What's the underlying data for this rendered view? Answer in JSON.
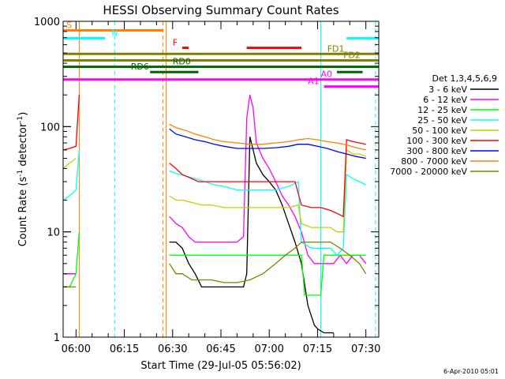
{
  "chart_data": {
    "type": "line",
    "title": "HESSI Observing Summary Count Rates",
    "xlabel": "Start Time (29-Jul-05 05:56:02)",
    "ylabel_main": "Count Rate (s",
    "ylabel_sup1": "-1",
    "ylabel_mid": " detector",
    "ylabel_sup2": "-1",
    "ylabel_end": ")",
    "x_start": "05:56:02",
    "x_tick_labels": [
      "06:00",
      "06:15",
      "06:30",
      "06:45",
      "07:00",
      "07:15",
      "07:30"
    ],
    "x_tick_values_min": [
      0,
      15,
      30,
      45,
      60,
      75,
      90
    ],
    "y_tick_labels": [
      "1",
      "10",
      "100",
      "1000"
    ],
    "y_scale": "log",
    "ylim": [
      1,
      1000
    ],
    "xlim_minutes_after_0600": [
      -4,
      94
    ],
    "legend_title": "Det 1,3,4,5,6,9",
    "legend_position": "right",
    "series": [
      {
        "name": "3 - 6 keV",
        "color": "#000000",
        "points": [
          [
            -4,
            4
          ],
          [
            -2,
            4
          ],
          [
            -1,
            4
          ],
          [
            0,
            4
          ],
          [
            28,
            null
          ],
          [
            29,
            8
          ],
          [
            31,
            8
          ],
          [
            33,
            7
          ],
          [
            35,
            5
          ],
          [
            37,
            4
          ],
          [
            39,
            3
          ],
          [
            41,
            3
          ],
          [
            43,
            3
          ],
          [
            45,
            3
          ],
          [
            46,
            3
          ],
          [
            48,
            3
          ],
          [
            50,
            3
          ],
          [
            52,
            3
          ],
          [
            53,
            4
          ],
          [
            54,
            80
          ],
          [
            55,
            60
          ],
          [
            56,
            45
          ],
          [
            58,
            35
          ],
          [
            60,
            30
          ],
          [
            62,
            25
          ],
          [
            64,
            18
          ],
          [
            66,
            12
          ],
          [
            68,
            8
          ],
          [
            70,
            5
          ],
          [
            72,
            2
          ],
          [
            74,
            1.3
          ],
          [
            75,
            1.2
          ],
          [
            77,
            1.1
          ],
          [
            80,
            1.1
          ]
        ]
      },
      {
        "name": "6 - 12 keV",
        "color": "#ff00ff",
        "points": [
          [
            -4,
            4
          ],
          [
            -2,
            4
          ],
          [
            0,
            4
          ],
          [
            28,
            null
          ],
          [
            29,
            14
          ],
          [
            31,
            12
          ],
          [
            33,
            11
          ],
          [
            35,
            9
          ],
          [
            37,
            8
          ],
          [
            40,
            8
          ],
          [
            43,
            8
          ],
          [
            46,
            8
          ],
          [
            50,
            8
          ],
          [
            52,
            9
          ],
          [
            53,
            120
          ],
          [
            54,
            200
          ],
          [
            55,
            150
          ],
          [
            56,
            70
          ],
          [
            58,
            50
          ],
          [
            60,
            40
          ],
          [
            62,
            30
          ],
          [
            64,
            22
          ],
          [
            66,
            18
          ],
          [
            68,
            14
          ],
          [
            70,
            10
          ],
          [
            72,
            6
          ],
          [
            74,
            5
          ],
          [
            76,
            5
          ],
          [
            78,
            5
          ],
          [
            80,
            5
          ],
          [
            82,
            6
          ],
          [
            84,
            5
          ],
          [
            86,
            6
          ],
          [
            88,
            6
          ],
          [
            90,
            5
          ]
        ]
      },
      {
        "name": "12 - 25 keV",
        "color": "#00ff00",
        "points": [
          [
            -4,
            3
          ],
          [
            -2,
            3
          ],
          [
            0,
            4
          ],
          [
            1,
            10
          ],
          [
            28,
            null
          ],
          [
            29,
            6
          ],
          [
            31,
            6
          ],
          [
            33,
            6
          ],
          [
            35,
            6
          ],
          [
            37,
            6
          ],
          [
            40,
            6
          ],
          [
            43,
            6
          ],
          [
            46,
            6
          ],
          [
            50,
            6
          ],
          [
            53,
            6
          ],
          [
            56,
            6
          ],
          [
            59,
            6
          ],
          [
            62,
            6
          ],
          [
            65,
            6
          ],
          [
            68,
            6
          ],
          [
            70,
            6
          ],
          [
            71,
            2.5
          ],
          [
            74,
            2.5
          ],
          [
            76,
            2.5
          ],
          [
            77,
            6
          ],
          [
            80,
            6
          ],
          [
            83,
            6
          ],
          [
            86,
            6
          ],
          [
            88,
            6
          ],
          [
            90,
            6
          ]
        ]
      },
      {
        "name": "25 - 50 keV",
        "color": "#00ffff",
        "points": [
          [
            -4,
            20
          ],
          [
            -2,
            22
          ],
          [
            0,
            25
          ],
          [
            1,
            60
          ],
          [
            28,
            null
          ],
          [
            29,
            38
          ],
          [
            31,
            36
          ],
          [
            34,
            34
          ],
          [
            37,
            32
          ],
          [
            40,
            30
          ],
          [
            43,
            28
          ],
          [
            46,
            27
          ],
          [
            50,
            25
          ],
          [
            54,
            25
          ],
          [
            58,
            25
          ],
          [
            62,
            25
          ],
          [
            66,
            27
          ],
          [
            69,
            30
          ],
          [
            70,
            8
          ],
          [
            73,
            7
          ],
          [
            76,
            7
          ],
          [
            79,
            7
          ],
          [
            81,
            6
          ],
          [
            83,
            7
          ],
          [
            84,
            35
          ],
          [
            86,
            32
          ],
          [
            88,
            30
          ],
          [
            90,
            28
          ]
        ]
      },
      {
        "name": "50 - 100 keV",
        "color": "#cccc00",
        "points": [
          [
            -4,
            40
          ],
          [
            -2,
            45
          ],
          [
            0,
            50
          ],
          [
            28,
            null
          ],
          [
            29,
            22
          ],
          [
            31,
            20
          ],
          [
            33,
            20
          ],
          [
            36,
            19
          ],
          [
            39,
            18
          ],
          [
            42,
            18
          ],
          [
            46,
            17
          ],
          [
            50,
            17
          ],
          [
            54,
            17
          ],
          [
            58,
            17
          ],
          [
            62,
            17
          ],
          [
            66,
            17
          ],
          [
            69,
            18
          ],
          [
            70,
            12
          ],
          [
            73,
            11
          ],
          [
            76,
            11
          ],
          [
            79,
            11
          ],
          [
            81,
            10
          ],
          [
            83,
            10
          ],
          [
            84,
            60
          ],
          [
            86,
            55
          ],
          [
            88,
            55
          ],
          [
            90,
            52
          ]
        ]
      },
      {
        "name": "100 - 300 keV",
        "color": "#ff0000",
        "points": [
          [
            -4,
            60
          ],
          [
            -2,
            62
          ],
          [
            0,
            65
          ],
          [
            1,
            200
          ],
          [
            28,
            null
          ],
          [
            29,
            45
          ],
          [
            31,
            40
          ],
          [
            33,
            35
          ],
          [
            35,
            33
          ],
          [
            38,
            30
          ],
          [
            41,
            30
          ],
          [
            44,
            30
          ],
          [
            47,
            30
          ],
          [
            50,
            30
          ],
          [
            53,
            30
          ],
          [
            56,
            30
          ],
          [
            59,
            30
          ],
          [
            62,
            30
          ],
          [
            65,
            30
          ],
          [
            68,
            30
          ],
          [
            70,
            18
          ],
          [
            73,
            17
          ],
          [
            76,
            17
          ],
          [
            79,
            16
          ],
          [
            81,
            15
          ],
          [
            83,
            14
          ],
          [
            84,
            75
          ],
          [
            86,
            72
          ],
          [
            88,
            70
          ],
          [
            90,
            68
          ]
        ]
      },
      {
        "name": "300 - 800 keV",
        "color": "#0000ff",
        "points": [
          [
            28,
            null
          ],
          [
            29,
            95
          ],
          [
            31,
            85
          ],
          [
            34,
            80
          ],
          [
            37,
            75
          ],
          [
            40,
            72
          ],
          [
            43,
            68
          ],
          [
            46,
            65
          ],
          [
            50,
            62
          ],
          [
            54,
            62
          ],
          [
            58,
            62
          ],
          [
            62,
            63
          ],
          [
            66,
            65
          ],
          [
            69,
            68
          ],
          [
            72,
            68
          ],
          [
            75,
            65
          ],
          [
            78,
            62
          ],
          [
            81,
            58
          ],
          [
            84,
            55
          ],
          [
            87,
            52
          ],
          [
            90,
            50
          ]
        ]
      },
      {
        "name": "800 - 7000 keV",
        "color": "#ff8000",
        "points": [
          [
            28,
            null
          ],
          [
            29,
            105
          ],
          [
            31,
            98
          ],
          [
            34,
            92
          ],
          [
            37,
            85
          ],
          [
            40,
            80
          ],
          [
            43,
            75
          ],
          [
            46,
            72
          ],
          [
            50,
            70
          ],
          [
            54,
            68
          ],
          [
            58,
            68
          ],
          [
            62,
            70
          ],
          [
            66,
            72
          ],
          [
            69,
            75
          ],
          [
            72,
            77
          ],
          [
            75,
            75
          ],
          [
            78,
            72
          ],
          [
            81,
            70
          ],
          [
            84,
            67
          ],
          [
            87,
            63
          ],
          [
            90,
            60
          ]
        ]
      },
      {
        "name": "7000 - 20000 keV",
        "color": "#808000",
        "points": [
          [
            -4,
            3
          ],
          [
            -2,
            3
          ],
          [
            0,
            3
          ],
          [
            28,
            null
          ],
          [
            29,
            5
          ],
          [
            31,
            4
          ],
          [
            33,
            4
          ],
          [
            36,
            3.5
          ],
          [
            39,
            3.5
          ],
          [
            42,
            3.5
          ],
          [
            46,
            3.3
          ],
          [
            50,
            3.3
          ],
          [
            54,
            3.5
          ],
          [
            58,
            4
          ],
          [
            62,
            5
          ],
          [
            65,
            6
          ],
          [
            68,
            7
          ],
          [
            70,
            8
          ],
          [
            73,
            8
          ],
          [
            76,
            8
          ],
          [
            79,
            8
          ],
          [
            82,
            7
          ],
          [
            85,
            6
          ],
          [
            88,
            5
          ],
          [
            90,
            4
          ]
        ]
      }
    ],
    "flag_bars": [
      {
        "name": "S",
        "color": "#ff8000",
        "y": 820,
        "segments": [
          [
            -4,
            27
          ]
        ],
        "label_at": -3
      },
      {
        "name": "N",
        "color": "#00ffff",
        "y": 690,
        "segments": [
          [
            -4,
            9
          ],
          [
            84,
            94
          ]
        ],
        "label_at": 11
      },
      {
        "name": "F",
        "color": "#ff0000",
        "y": 560,
        "segments": [
          [
            33,
            35
          ],
          [
            53,
            70
          ]
        ],
        "label_at": 30
      },
      {
        "name": "FD1",
        "color": "#808000",
        "y": 490,
        "segments": [
          [
            -4,
            94
          ]
        ],
        "label_at": 78
      },
      {
        "name": "FD2",
        "color": "#808000",
        "y": 425,
        "segments": [
          [
            -4,
            94
          ]
        ],
        "label_at": 83
      },
      {
        "name": "RD0",
        "color": "#006400",
        "y": 370,
        "segments": [
          [
            -4,
            94
          ]
        ],
        "label_at": 30
      },
      {
        "name": "RD6",
        "color": "#006400",
        "y": 330,
        "segments": [
          [
            23,
            38
          ],
          [
            81,
            89
          ]
        ],
        "label_at": 17
      },
      {
        "name": "A0",
        "color": "#ff00ff",
        "y": 280,
        "segments": [
          [
            -4,
            94
          ]
        ],
        "label_at": 76
      },
      {
        "name": "A1",
        "color": "#ff00ff",
        "y": 240,
        "segments": [
          [
            77,
            94
          ]
        ],
        "label_at": 72
      }
    ],
    "vlines": [
      {
        "x": 1,
        "color": "#ff8000",
        "style": "solid"
      },
      {
        "x": 12,
        "color": "#00ffff",
        "style": "dashed"
      },
      {
        "x": 27,
        "color": "#ff8000",
        "style": "dashed"
      },
      {
        "x": 28,
        "color": "#ff8000",
        "style": "solid"
      },
      {
        "x": 76,
        "color": "#00ffff",
        "style": "solid"
      },
      {
        "x": 93,
        "color": "#00ffff",
        "style": "dashed"
      }
    ],
    "timestamp": "6-Apr-2010 05:01"
  }
}
